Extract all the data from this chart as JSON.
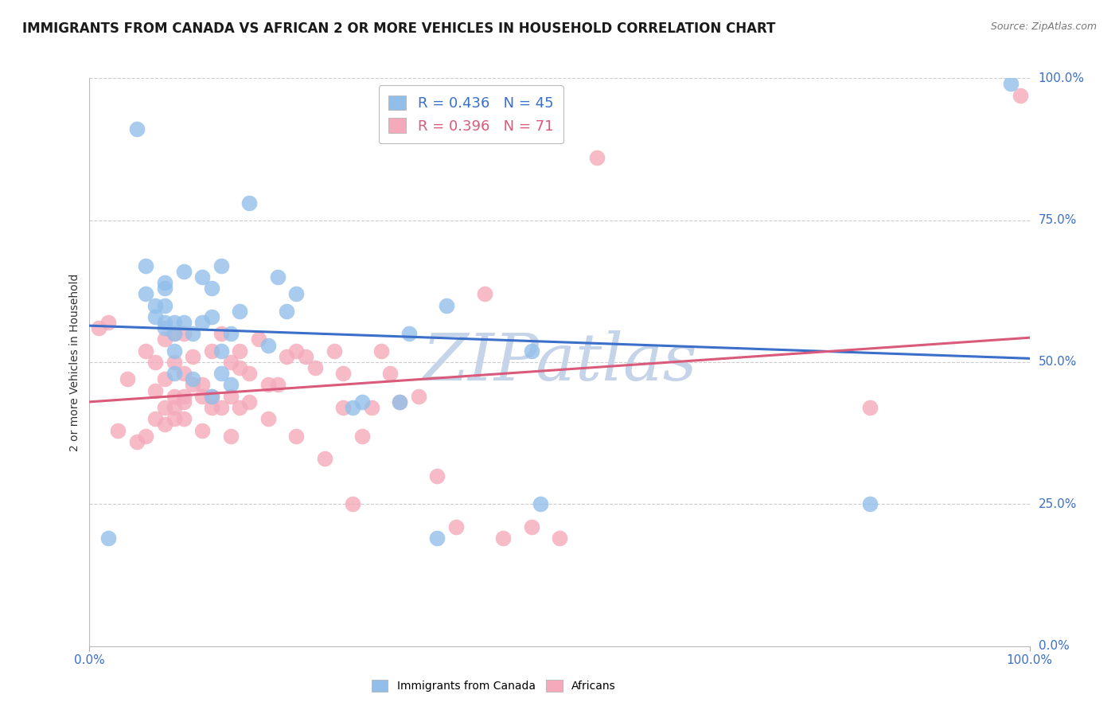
{
  "title": "IMMIGRANTS FROM CANADA VS AFRICAN 2 OR MORE VEHICLES IN HOUSEHOLD CORRELATION CHART",
  "source": "Source: ZipAtlas.com",
  "ylabel": "2 or more Vehicles in Household",
  "watermark": "ZIPatlas",
  "legend_canada_label": "R = 0.436   N = 45",
  "legend_african_label": "R = 0.396   N = 71",
  "legend_bottom_canada": "Immigrants from Canada",
  "legend_bottom_african": "Africans",
  "canada_color": "#92BFEA",
  "african_color": "#F4AABA",
  "canada_line_color": "#3B6FC9",
  "african_line_color": "#D95A7A",
  "canada_x": [
    0.02,
    0.05,
    0.06,
    0.06,
    0.07,
    0.07,
    0.08,
    0.08,
    0.08,
    0.08,
    0.08,
    0.09,
    0.09,
    0.09,
    0.09,
    0.1,
    0.1,
    0.11,
    0.11,
    0.12,
    0.12,
    0.13,
    0.13,
    0.13,
    0.14,
    0.14,
    0.14,
    0.15,
    0.15,
    0.16,
    0.17,
    0.19,
    0.2,
    0.21,
    0.22,
    0.28,
    0.29,
    0.33,
    0.34,
    0.37,
    0.38,
    0.47,
    0.48,
    0.83,
    0.98
  ],
  "canada_y": [
    0.19,
    0.91,
    0.62,
    0.67,
    0.58,
    0.6,
    0.56,
    0.57,
    0.6,
    0.63,
    0.64,
    0.48,
    0.52,
    0.55,
    0.57,
    0.57,
    0.66,
    0.47,
    0.55,
    0.57,
    0.65,
    0.44,
    0.58,
    0.63,
    0.48,
    0.52,
    0.67,
    0.46,
    0.55,
    0.59,
    0.78,
    0.53,
    0.65,
    0.59,
    0.62,
    0.42,
    0.43,
    0.43,
    0.55,
    0.19,
    0.6,
    0.52,
    0.25,
    0.25,
    0.99
  ],
  "african_x": [
    0.01,
    0.02,
    0.03,
    0.04,
    0.05,
    0.06,
    0.06,
    0.07,
    0.07,
    0.07,
    0.08,
    0.08,
    0.08,
    0.08,
    0.09,
    0.09,
    0.09,
    0.09,
    0.09,
    0.1,
    0.1,
    0.1,
    0.1,
    0.1,
    0.11,
    0.11,
    0.12,
    0.12,
    0.12,
    0.13,
    0.13,
    0.13,
    0.14,
    0.14,
    0.15,
    0.15,
    0.15,
    0.16,
    0.16,
    0.16,
    0.17,
    0.17,
    0.18,
    0.19,
    0.19,
    0.2,
    0.21,
    0.22,
    0.22,
    0.23,
    0.24,
    0.25,
    0.26,
    0.27,
    0.27,
    0.28,
    0.29,
    0.3,
    0.31,
    0.32,
    0.33,
    0.35,
    0.37,
    0.39,
    0.42,
    0.44,
    0.47,
    0.5,
    0.54,
    0.83,
    0.99
  ],
  "african_y": [
    0.56,
    0.57,
    0.38,
    0.47,
    0.36,
    0.37,
    0.52,
    0.4,
    0.45,
    0.5,
    0.39,
    0.42,
    0.47,
    0.54,
    0.4,
    0.42,
    0.44,
    0.5,
    0.55,
    0.4,
    0.43,
    0.44,
    0.48,
    0.55,
    0.46,
    0.51,
    0.38,
    0.44,
    0.46,
    0.42,
    0.44,
    0.52,
    0.42,
    0.55,
    0.37,
    0.44,
    0.5,
    0.42,
    0.49,
    0.52,
    0.43,
    0.48,
    0.54,
    0.4,
    0.46,
    0.46,
    0.51,
    0.37,
    0.52,
    0.51,
    0.49,
    0.33,
    0.52,
    0.42,
    0.48,
    0.25,
    0.37,
    0.42,
    0.52,
    0.48,
    0.43,
    0.44,
    0.3,
    0.21,
    0.62,
    0.19,
    0.21,
    0.19,
    0.86,
    0.42,
    0.97
  ],
  "xlim": [
    0.0,
    1.0
  ],
  "ylim": [
    0.0,
    1.0
  ],
  "ytick_values": [
    0.0,
    0.25,
    0.5,
    0.75,
    1.0
  ],
  "ytick_labels": [
    "0.0%",
    "25.0%",
    "50.0%",
    "75.0%",
    "100.0%"
  ],
  "xtick_values": [
    0.0,
    1.0
  ],
  "xtick_labels": [
    "0.0%",
    "100.0%"
  ],
  "grid_color": "#cccccc",
  "title_fontsize": 12,
  "axis_label_fontsize": 10,
  "tick_fontsize": 11,
  "source_fontsize": 9,
  "watermark_color": "#c5d4e8",
  "watermark_fontsize": 60,
  "title_color": "#1a1a1a",
  "tick_color": "#3B6FC9",
  "axis_label_color": "#333333"
}
